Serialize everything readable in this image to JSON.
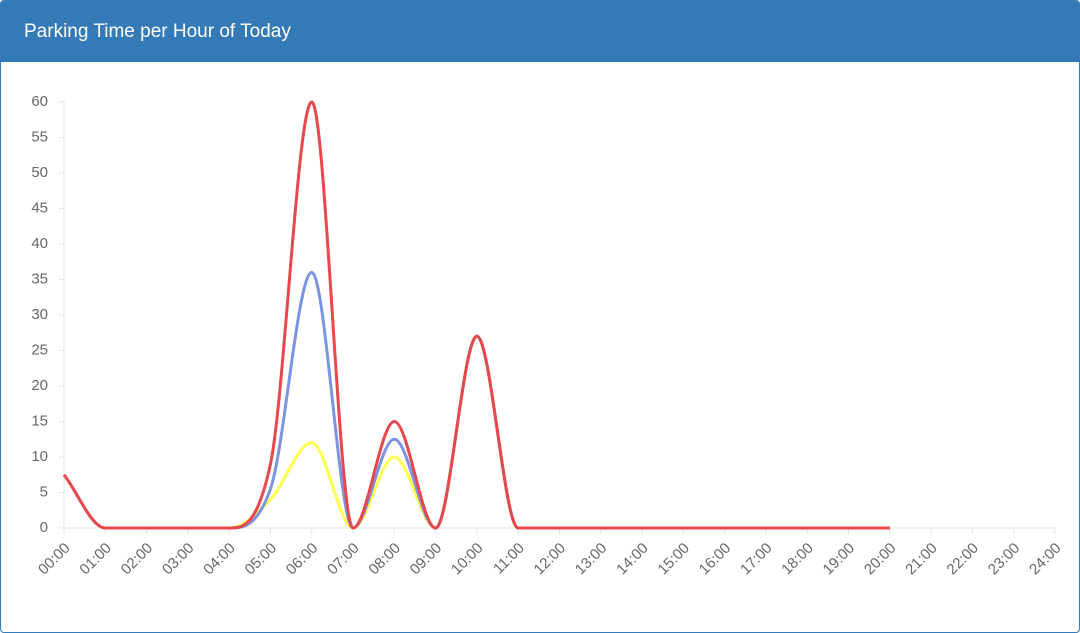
{
  "chart_data": {
    "type": "line",
    "title": "Parking Time per Hour of Today",
    "categories": [
      "00:00",
      "01:00",
      "02:00",
      "03:00",
      "04:00",
      "05:00",
      "06:00",
      "07:00",
      "08:00",
      "09:00",
      "10:00",
      "11:00",
      "12:00",
      "13:00",
      "14:00",
      "15:00",
      "16:00",
      "17:00",
      "18:00",
      "19:00",
      "20:00",
      "21:00",
      "22:00",
      "23:00",
      "24:00"
    ],
    "series": [
      {
        "color": "#ffff4d",
        "values": [
          7.5,
          0,
          0,
          0,
          0,
          4,
          12,
          0,
          10,
          0,
          27,
          0,
          0,
          0,
          0,
          0,
          0,
          0,
          0,
          0,
          0,
          null,
          null,
          null,
          null
        ]
      },
      {
        "color": "#7b93e0",
        "values": [
          7.5,
          0,
          0,
          0,
          0,
          5.5,
          36,
          0,
          12.5,
          0,
          27,
          0,
          0,
          0,
          0,
          0,
          0,
          0,
          0,
          0,
          0,
          null,
          null,
          null,
          null
        ]
      },
      {
        "color": "#e8474c",
        "values": [
          7.5,
          0,
          0,
          0,
          0,
          9,
          60,
          0,
          15,
          0,
          27,
          0,
          0,
          0,
          0,
          0,
          0,
          0,
          0,
          0,
          0,
          null,
          null,
          null,
          null
        ]
      }
    ],
    "ylim": [
      0,
      60
    ],
    "yticks": [
      0,
      5,
      10,
      15,
      20,
      25,
      30,
      35,
      40,
      45,
      50,
      55,
      60
    ],
    "grid": false
  }
}
